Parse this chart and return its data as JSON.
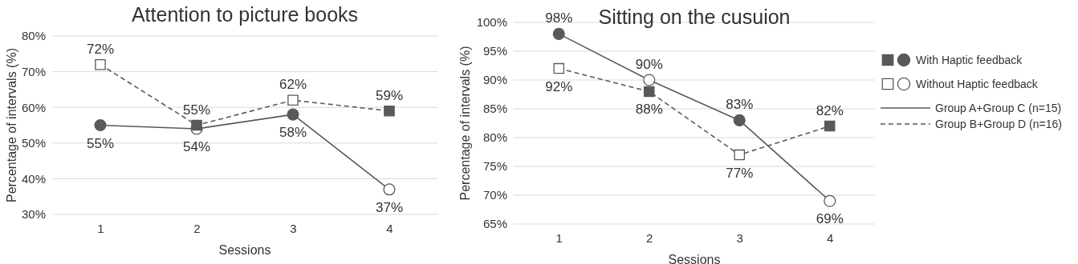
{
  "chart_data": [
    {
      "type": "line",
      "title": "Attention to picture books",
      "xlabel": "Sessions",
      "ylabel": "Percentage of intervals (%)",
      "categories": [
        "1",
        "2",
        "3",
        "4"
      ],
      "series": [
        {
          "color": "#595959",
          "marker": "circle",
          "line_style": "solid",
          "values": [
            55,
            54,
            58,
            37
          ],
          "value_labels": [
            "55%",
            "54%",
            "58%",
            "37%"
          ],
          "colors": [
            "#595959",
            "#ffffff",
            "#595959",
            "#ffffff"
          ]
        },
        {
          "color": "#595959",
          "marker": "square",
          "line_style": "dashed",
          "values": [
            72,
            55,
            62,
            59
          ],
          "value_labels": [
            "72%",
            "55%",
            "62%",
            "59%"
          ],
          "colors": [
            "#ffffff",
            "#595959",
            "#ffffff",
            "#595959"
          ]
        }
      ],
      "ylim": [
        30,
        80
      ],
      "yticks": [
        {
          "value": 30,
          "label": "30%"
        },
        {
          "value": 40,
          "label": "40%"
        },
        {
          "value": 50,
          "label": "50%"
        },
        {
          "value": 60,
          "label": "60%"
        },
        {
          "value": 70,
          "label": "70%"
        },
        {
          "value": 80,
          "label": "80%"
        }
      ],
      "grid": "y"
    },
    {
      "type": "line",
      "title": "Sitting on the cusuion",
      "xlabel": "Sessions",
      "ylabel": "Percentage of intervals (%)",
      "categories": [
        "1",
        "2",
        "3",
        "4"
      ],
      "series": [
        {
          "name": "Group A+Group C (n=15)",
          "color": "#595959",
          "marker": "circle",
          "line_style": "solid",
          "values": [
            98,
            90,
            83,
            69
          ],
          "value_labels": [
            "98%",
            "90%",
            "83%",
            "69%"
          ],
          "colors": [
            "#595959",
            "#ffffff",
            "#595959",
            "#ffffff"
          ]
        },
        {
          "name": "Group B+Group D (n=16)",
          "color": "#595959",
          "marker": "square",
          "line_style": "dashed",
          "values": [
            92,
            88,
            77,
            82
          ],
          "value_labels": [
            "92%",
            "88%",
            "77%",
            "82%"
          ],
          "colors": [
            "#ffffff",
            "#595959",
            "#ffffff",
            "#595959"
          ]
        }
      ],
      "ylim": [
        65,
        100
      ],
      "yticks": [
        {
          "value": 65,
          "label": "65%"
        },
        {
          "value": 70,
          "label": "70%"
        },
        {
          "value": 75,
          "label": "75%"
        },
        {
          "value": 80,
          "label": "80%"
        },
        {
          "value": 85,
          "label": "85%"
        },
        {
          "value": 90,
          "label": "90%"
        },
        {
          "value": 95,
          "label": "95%"
        },
        {
          "value": 100,
          "label": "100%"
        }
      ],
      "grid": "y",
      "legend": "right",
      "annotations": [
        "With Haptic feedback",
        "Without Haptic feedback"
      ]
    }
  ]
}
